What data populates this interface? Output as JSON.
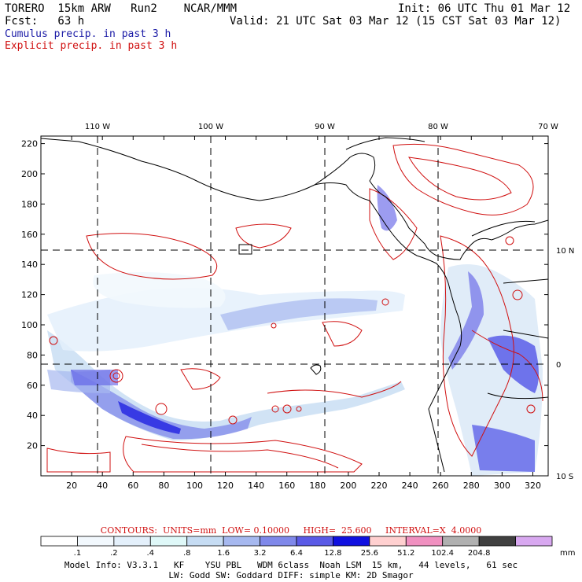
{
  "header": {
    "model": "TORERO  15km ARW   Run2    NCAR/MMM",
    "init": "Init: 06 UTC Thu 01 Mar 12",
    "fcst": "Fcst:   63 h",
    "valid": "Valid: 21 UTC Sat 03 Mar 12 (15 CST Sat 03 Mar 12)",
    "legend_cumulus": "Cumulus precip. in past 3 h",
    "legend_explicit": "Explicit precip. in past 3 h"
  },
  "chart_data": {
    "type": "heatmap",
    "x_ticks": [
      "20",
      "40",
      "60",
      "80",
      "100",
      "120",
      "140",
      "160",
      "180",
      "200",
      "220",
      "240",
      "260",
      "280",
      "300",
      "320"
    ],
    "y_ticks": [
      "20",
      "40",
      "60",
      "80",
      "100",
      "120",
      "140",
      "160",
      "180",
      "200",
      "220"
    ],
    "lon_labels": [
      "110 W",
      "100 W",
      "90 W",
      "80 W",
      "70 W"
    ],
    "lat_labels": [
      "10 N",
      "0",
      "10 S"
    ],
    "xlim": [
      0,
      330
    ],
    "ylim": [
      0,
      225
    ],
    "grid": "dashed lat/lon lines",
    "contour_info": {
      "text": "CONTOURS:  UNITS=mm  LOW= 0.10000     HIGH=  25.600     INTERVAL=X  4.0000",
      "units": "mm",
      "low": 0.1,
      "high": 25.6,
      "interval_factor": 4.0
    },
    "colorbar": {
      "levels": [
        ".1",
        ".2",
        ".4",
        ".8",
        "1.6",
        "3.2",
        "6.4",
        "12.8",
        "25.6",
        "51.2",
        "102.4",
        "204.8"
      ],
      "unit": "mm",
      "colors": [
        "#ffffff",
        "#f2f8fd",
        "#e4f0fb",
        "#dff8f8",
        "#c6dcf3",
        "#a6b8ef",
        "#7f88ea",
        "#5a5ae6",
        "#1010e0",
        "#ffd0d0",
        "#f090c0",
        "#b0b0b0",
        "#404040",
        "#d8a8f0"
      ]
    },
    "colors": {
      "cumulus": "#1a1aa6",
      "explicit": "#d01010",
      "coast": "#000000"
    }
  },
  "footer": {
    "model_info": "Model Info: V3.3.1   KF    YSU PBL   WDM 6class  Noah LSM  15 km,   44 levels,   61 sec",
    "model_info2": "LW: Godd SW: Goddard DIFF: simple KM: 2D Smagor"
  }
}
